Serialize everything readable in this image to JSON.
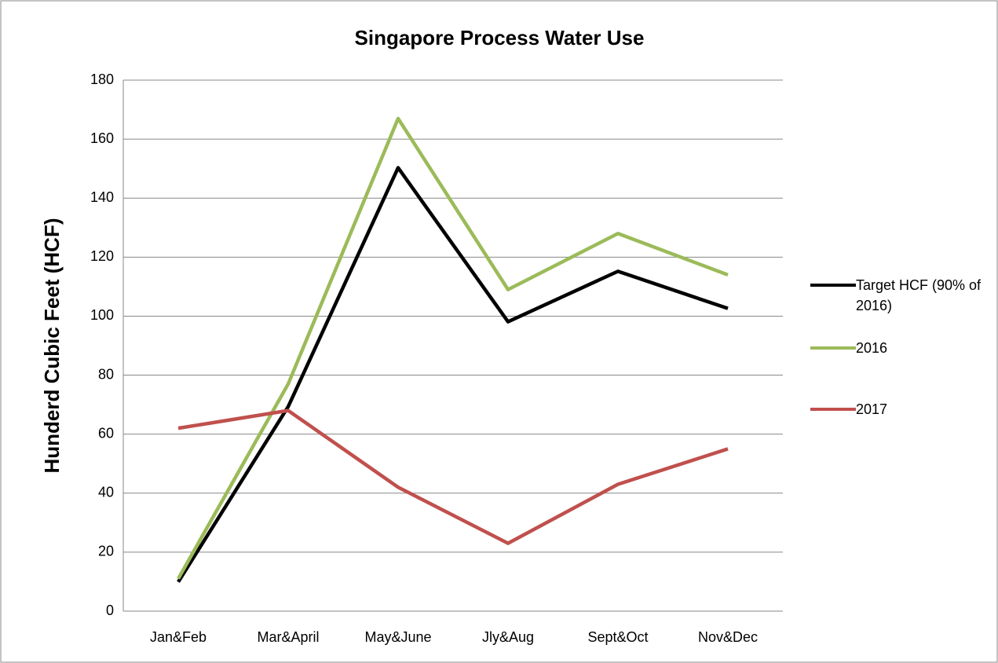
{
  "chart_data": {
    "type": "line",
    "title": "Singapore Process Water Use",
    "y_label": "Hunderd Cubic Feet (HCF)",
    "categories": [
      "Jan&Feb",
      "Mar&April",
      "May&June",
      "Jly&Aug",
      "Sept&Oct",
      "Nov&Dec"
    ],
    "series": [
      {
        "name": "Target HCF (90% of 2016)",
        "color": "#000000",
        "values": [
          9.9,
          69.3,
          150.3,
          98.1,
          115.2,
          102.6
        ]
      },
      {
        "name": "2016",
        "color": "#9bbb59",
        "values": [
          11,
          77,
          167,
          109,
          128,
          114
        ]
      },
      {
        "name": "2017",
        "color": "#c0504d",
        "values": [
          62,
          68,
          42,
          23,
          43,
          55
        ]
      }
    ],
    "ylim": [
      0,
      180
    ],
    "yticks": [
      0,
      20,
      40,
      60,
      80,
      100,
      120,
      140,
      160,
      180
    ],
    "grid": true,
    "legend": "right"
  }
}
